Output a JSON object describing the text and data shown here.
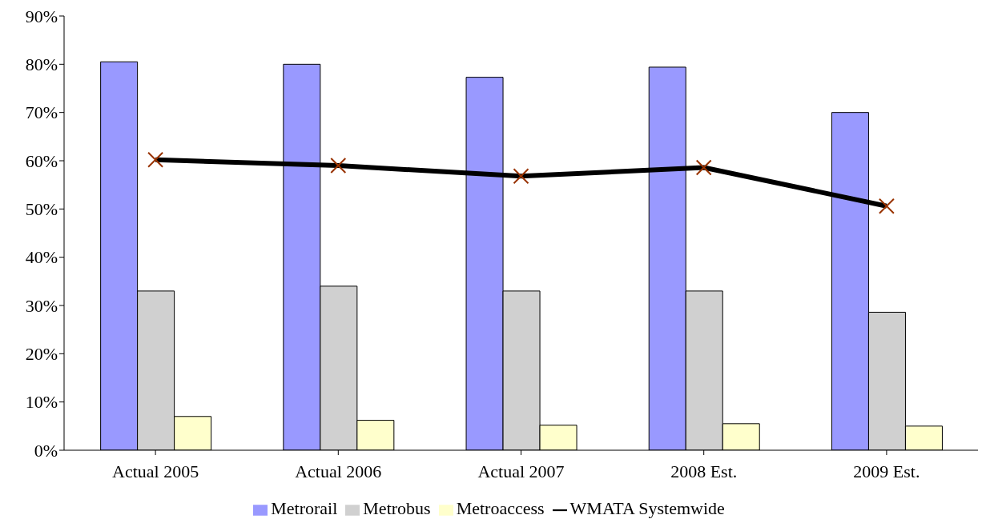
{
  "chart_data": {
    "type": "bar",
    "categories": [
      "Actual 2005",
      "Actual 2006",
      "Actual 2007",
      "2008 Est.",
      "2009 Est."
    ],
    "series": [
      {
        "name": "Metrorail",
        "color": "#9999ff",
        "values": [
          80.5,
          80,
          77.3,
          79.4,
          70
        ]
      },
      {
        "name": "Metrobus",
        "color": "#d0d0d0",
        "values": [
          33,
          34,
          33,
          33,
          28.6
        ]
      },
      {
        "name": "Metroaccess",
        "color": "#ffffcc",
        "values": [
          7,
          6.2,
          5.2,
          5.5,
          5
        ]
      },
      {
        "name": "WMATA Systemwide",
        "type": "line",
        "color": "#000000",
        "values": [
          60.2,
          59,
          56.8,
          58.6,
          50.6
        ]
      }
    ],
    "ylim": [
      0,
      90
    ],
    "yticks": [
      {
        "value": 0,
        "label": "0%"
      },
      {
        "value": 10,
        "label": "10%"
      },
      {
        "value": 20,
        "label": "20%"
      },
      {
        "value": 30,
        "label": "30%"
      },
      {
        "value": 40,
        "label": "40%"
      },
      {
        "value": 50,
        "label": "50%"
      },
      {
        "value": 60,
        "label": "60%"
      },
      {
        "value": 70,
        "label": "70%"
      },
      {
        "value": 80,
        "label": "80%"
      },
      {
        "value": 90,
        "label": "90%"
      }
    ],
    "grid": false,
    "legend": "bottom",
    "marker": "cross"
  }
}
